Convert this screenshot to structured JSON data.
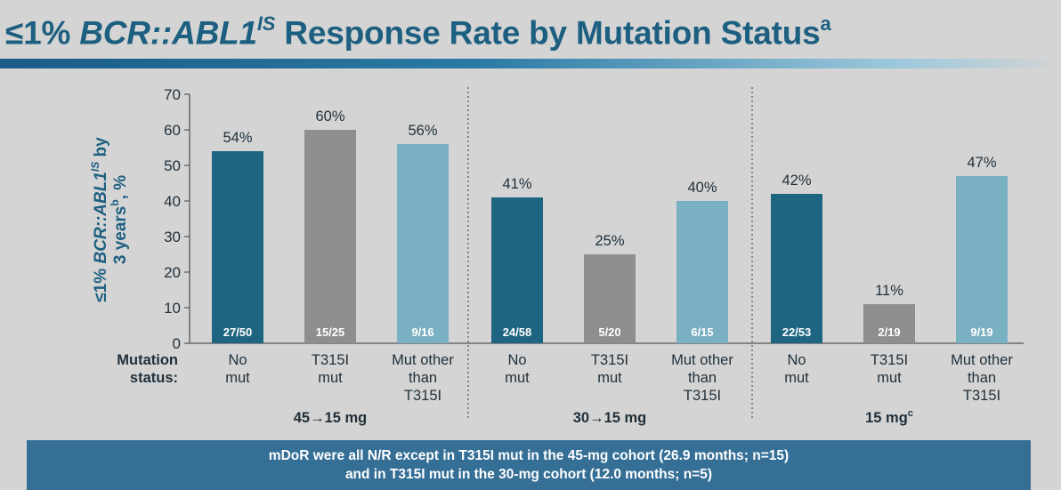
{
  "title": {
    "lead": "≤1% ",
    "gene": "BCR::ABL1",
    "gene_sup": "IS",
    "rest": " Response Rate by Mutation Status",
    "rest_sup": "a"
  },
  "chart_data": {
    "type": "bar",
    "ylabel_line1_lead": "≤1% ",
    "ylabel_line1_gene": "BCR::ABL1",
    "ylabel_line1_sup": "IS",
    "ylabel_line1_tail": " by",
    "ylabel_line2_text": "3 years",
    "ylabel_line2_sup": "b",
    "ylabel_line2_tail": ", %",
    "ylim": [
      0,
      70
    ],
    "yticks": [
      "0",
      "10",
      "20",
      "30",
      "40",
      "50",
      "60",
      "70"
    ],
    "xaxis_title": [
      "Mutation",
      "status:"
    ],
    "colors": {
      "no_mut": "#1e6581",
      "t315i": "#8e8e8e",
      "other": "#79b0c2"
    },
    "groups": [
      {
        "label": "45→15 mg",
        "label_sup": "",
        "bars": [
          {
            "category": [
              "No",
              "mut"
            ],
            "value": 54,
            "value_label": "54%",
            "n_label": "27/50",
            "kind": "no_mut"
          },
          {
            "category": [
              "T315I",
              "mut"
            ],
            "value": 60,
            "value_label": "60%",
            "n_label": "15/25",
            "kind": "t315i"
          },
          {
            "category": [
              "Mut other",
              "than",
              "T315I"
            ],
            "value": 56,
            "value_label": "56%",
            "n_label": "9/16",
            "kind": "other"
          }
        ]
      },
      {
        "label": "30→15 mg",
        "label_sup": "",
        "bars": [
          {
            "category": [
              "No",
              "mut"
            ],
            "value": 41,
            "value_label": "41%",
            "n_label": "24/58",
            "kind": "no_mut"
          },
          {
            "category": [
              "T315I",
              "mut"
            ],
            "value": 25,
            "value_label": "25%",
            "n_label": "5/20",
            "kind": "t315i"
          },
          {
            "category": [
              "Mut other",
              "than",
              "T315I"
            ],
            "value": 40,
            "value_label": "40%",
            "n_label": "6/15",
            "kind": "other"
          }
        ]
      },
      {
        "label": "15 mg",
        "label_sup": "c",
        "bars": [
          {
            "category": [
              "No",
              "mut"
            ],
            "value": 42,
            "value_label": "42%",
            "n_label": "22/53",
            "kind": "no_mut"
          },
          {
            "category": [
              "T315I",
              "mut"
            ],
            "value": 11,
            "value_label": "11%",
            "n_label": "2/19",
            "kind": "t315i"
          },
          {
            "category": [
              "Mut other",
              "than",
              "T315I"
            ],
            "value": 47,
            "value_label": "47%",
            "n_label": "9/19",
            "kind": "other"
          }
        ]
      }
    ]
  },
  "footer": {
    "line1": "mDoR were all N/R except in T315I mut in the 45-mg cohort (26.9 months; n=15)",
    "line2": "and in T315I mut in the 30-mg cohort (12.0 months; n=5)"
  }
}
